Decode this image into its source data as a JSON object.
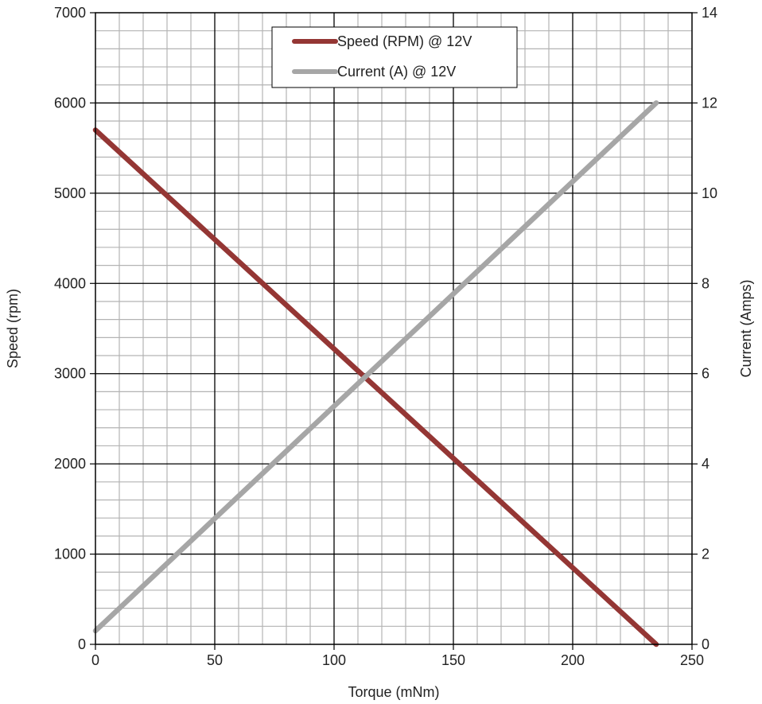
{
  "chart_data": {
    "type": "line",
    "title": "",
    "xlabel": "Torque (mNm)",
    "ylabel": "Speed (rpm)",
    "y2label": "Current (Amps)",
    "xlim": [
      0,
      250
    ],
    "ylim": [
      0,
      7000
    ],
    "y2lim": [
      0,
      14
    ],
    "x_ticks": [
      "0",
      "50",
      "100",
      "150",
      "200",
      "250"
    ],
    "y_ticks": [
      "0",
      "1000",
      "2000",
      "3000",
      "4000",
      "5000",
      "6000",
      "7000"
    ],
    "y2_ticks": [
      "0",
      "2",
      "4",
      "6",
      "8",
      "10",
      "12",
      "14"
    ],
    "grid": true,
    "legend_position": "top-center",
    "series": [
      {
        "name": "Speed (RPM) @ 12V",
        "axis": "left",
        "color": "#943634",
        "x": [
          0,
          235
        ],
        "y": [
          5700,
          0
        ]
      },
      {
        "name": "Current (A) @ 12V",
        "axis": "right",
        "color": "#A6A6A6",
        "x": [
          0,
          235
        ],
        "y": [
          0.3,
          12
        ]
      }
    ]
  }
}
